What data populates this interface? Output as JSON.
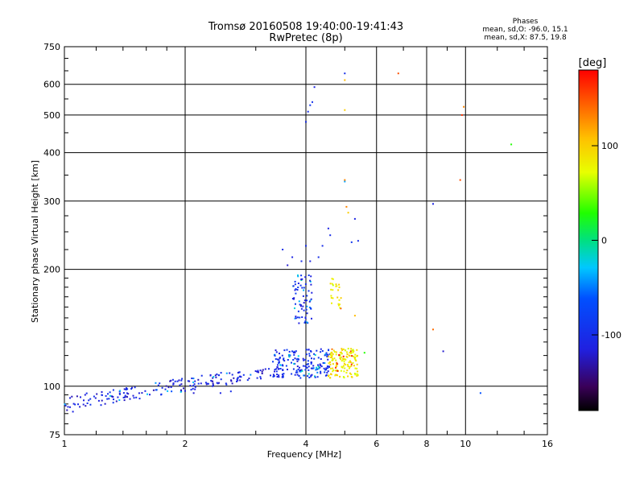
{
  "chart_data": {
    "type": "scatter",
    "title": "Tromsø 20160508 19:40:00-19:41:43",
    "subtitle": "RwPretec (8p)",
    "xlabel": "Frequency [MHz]",
    "ylabel": "Stationary phase Virtual Height [km]",
    "x_scale": "log",
    "y_scale": "log",
    "xlim": [
      1,
      16
    ],
    "ylim": [
      75,
      750
    ],
    "x_ticks": [
      1,
      2,
      4,
      6,
      8,
      10,
      16
    ],
    "y_ticks": [
      75,
      100,
      200,
      300,
      400,
      500,
      600,
      750
    ],
    "grid": true,
    "stats": {
      "heading": "Phases",
      "line_o": "mean, sd,O: -96.0, 15.1",
      "line_x": "mean, sd,X:  87.5, 19.8"
    },
    "colorbar": {
      "label": "[deg]",
      "ticks": [
        -100,
        0,
        100
      ],
      "range": [
        -180,
        180
      ]
    },
    "clusters": [
      {
        "note": "E region trace",
        "x_range": [
          1.0,
          3.5
        ],
        "y_range": [
          88,
          117
        ],
        "phase": -110,
        "count": 200
      },
      {
        "note": "F region O trace",
        "x_range": [
          3.3,
          4.6
        ],
        "y_range": [
          105,
          125
        ],
        "phase": -100,
        "count": 180
      },
      {
        "note": "F upper O trace",
        "x_range": [
          3.7,
          4.15
        ],
        "y_range": [
          145,
          195
        ],
        "phase": -100,
        "count": 70
      },
      {
        "note": "F X trace",
        "x_range": [
          4.55,
          5.4
        ],
        "y_range": [
          105,
          125
        ],
        "phase": 85,
        "count": 140
      },
      {
        "note": "F upper X trace",
        "x_range": [
          4.6,
          4.9
        ],
        "y_range": [
          150,
          190
        ],
        "phase": 80,
        "count": 25
      }
    ],
    "points": [
      {
        "x": 4.0,
        "y": 480,
        "phase": -100
      },
      {
        "x": 4.05,
        "y": 510,
        "phase": -100
      },
      {
        "x": 4.1,
        "y": 530,
        "phase": -90
      },
      {
        "x": 4.2,
        "y": 590,
        "phase": -110
      },
      {
        "x": 4.15,
        "y": 540,
        "phase": -95
      },
      {
        "x": 5.0,
        "y": 640,
        "phase": -100
      },
      {
        "x": 5.0,
        "y": 615,
        "phase": 110
      },
      {
        "x": 5.0,
        "y": 515,
        "phase": 100
      },
      {
        "x": 6.8,
        "y": 640,
        "phase": 150
      },
      {
        "x": 9.9,
        "y": 525,
        "phase": 130
      },
      {
        "x": 9.8,
        "y": 500,
        "phase": 160
      },
      {
        "x": 5.0,
        "y": 337,
        "phase": -40
      },
      {
        "x": 5.0,
        "y": 340,
        "phase": 130
      },
      {
        "x": 9.7,
        "y": 340,
        "phase": 150
      },
      {
        "x": 5.05,
        "y": 290,
        "phase": 130
      },
      {
        "x": 5.1,
        "y": 280,
        "phase": 100
      },
      {
        "x": 5.3,
        "y": 270,
        "phase": -110
      },
      {
        "x": 8.3,
        "y": 295,
        "phase": -110
      },
      {
        "x": 4.55,
        "y": 255,
        "phase": -110
      },
      {
        "x": 4.6,
        "y": 245,
        "phase": -100
      },
      {
        "x": 5.2,
        "y": 235,
        "phase": -90
      },
      {
        "x": 5.4,
        "y": 237,
        "phase": -100
      },
      {
        "x": 13.0,
        "y": 420,
        "phase": 30
      },
      {
        "x": 3.5,
        "y": 225,
        "phase": -100
      },
      {
        "x": 3.7,
        "y": 215,
        "phase": -110
      },
      {
        "x": 3.9,
        "y": 210,
        "phase": -100
      },
      {
        "x": 4.0,
        "y": 230,
        "phase": -100
      },
      {
        "x": 4.3,
        "y": 215,
        "phase": -100
      },
      {
        "x": 4.4,
        "y": 230,
        "phase": -100
      },
      {
        "x": 3.6,
        "y": 205,
        "phase": -120
      },
      {
        "x": 4.1,
        "y": 210,
        "phase": -110
      },
      {
        "x": 8.3,
        "y": 140,
        "phase": 140
      },
      {
        "x": 8.8,
        "y": 123,
        "phase": -120
      },
      {
        "x": 5.6,
        "y": 122,
        "phase": 30
      },
      {
        "x": 5.3,
        "y": 152,
        "phase": 110
      },
      {
        "x": 10.9,
        "y": 96,
        "phase": -60
      },
      {
        "x": 2.45,
        "y": 96,
        "phase": -110
      },
      {
        "x": 2.6,
        "y": 97,
        "phase": -100
      },
      {
        "x": 2.1,
        "y": 96,
        "phase": -120
      },
      {
        "x": 1.85,
        "y": 97,
        "phase": -60
      },
      {
        "x": 1.05,
        "y": 86,
        "phase": -110
      }
    ]
  }
}
